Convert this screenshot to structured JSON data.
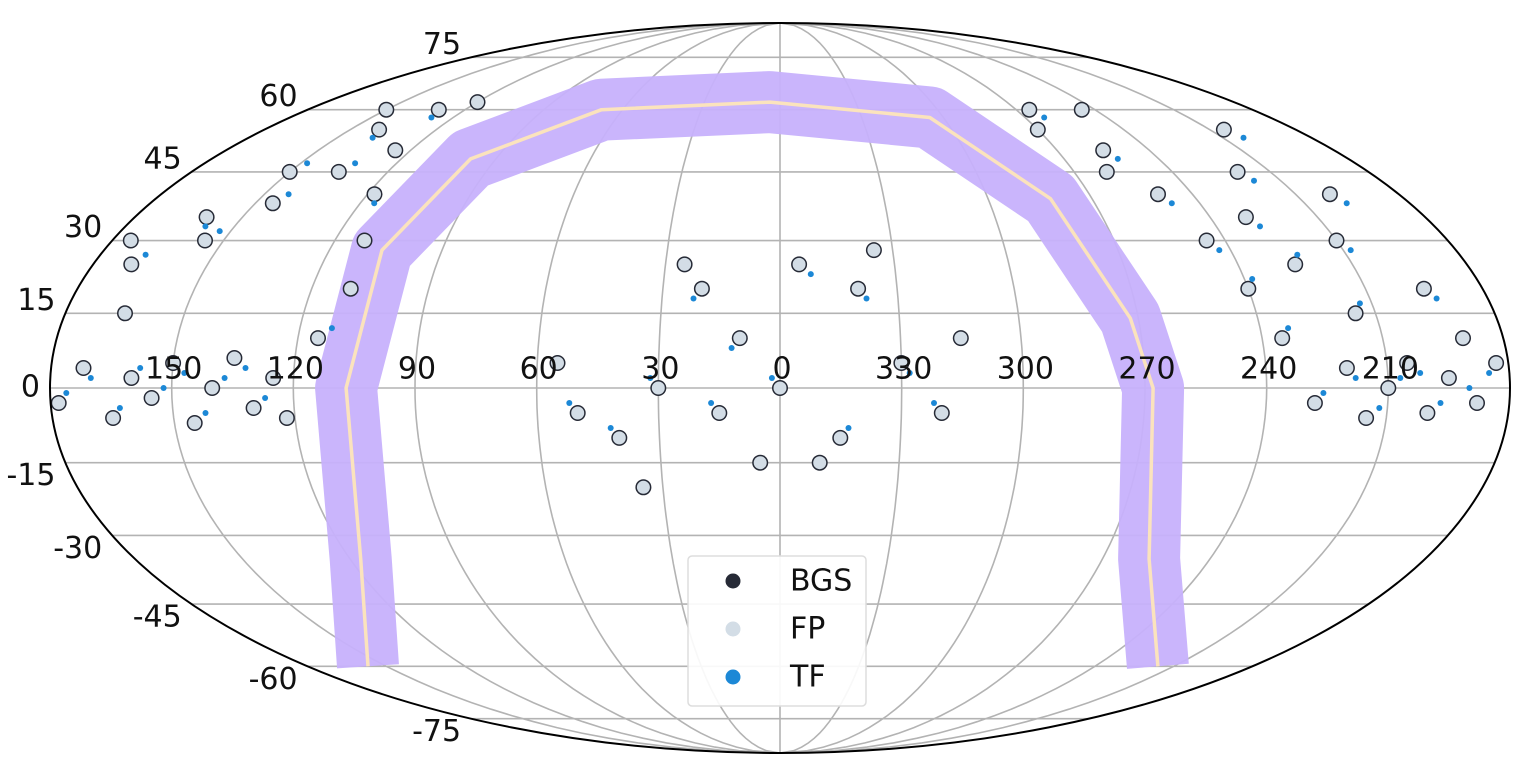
{
  "chart_data": {
    "type": "scatter",
    "projection": "mollweide",
    "xlim": [
      0,
      360
    ],
    "ylim": [
      -90,
      90
    ],
    "xticks": [
      150,
      120,
      90,
      60,
      30,
      0,
      330,
      300,
      270,
      240,
      210
    ],
    "yticks": [
      -75,
      -60,
      -45,
      -30,
      -15,
      0,
      15,
      30,
      45,
      60,
      75
    ],
    "grid": true,
    "legend": "lower center",
    "series": [
      {
        "name": "BGS",
        "color": "#262a36",
        "x": [
          178,
          172,
          165,
          160,
          155,
          150,
          145,
          140,
          135,
          130,
          125,
          122,
          170,
          160,
          150,
          140,
          130,
          120,
          155,
          145,
          135,
          125,
          118,
          112,
          110,
          115,
          165,
          175,
          150,
          0,
          10,
          20,
          355,
          340,
          330,
          320,
          345,
          15,
          30,
          40,
          50,
          55,
          25,
          5,
          350,
          35,
          335,
          315,
          265,
          255,
          250,
          245,
          240,
          235,
          230,
          225,
          220,
          215,
          210,
          205,
          200,
          195,
          190,
          260,
          270,
          245,
          228,
          220,
          215,
          210,
          205,
          200,
          195,
          188,
          183
        ],
        "values": [
          -3,
          4,
          -6,
          2,
          -2,
          5,
          -7,
          0,
          6,
          -4,
          2,
          -6,
          25,
          35,
          45,
          55,
          60,
          62,
          30,
          38,
          45,
          50,
          40,
          30,
          20,
          10,
          15,
          30,
          60,
          0,
          10,
          20,
          25,
          20,
          5,
          -5,
          -10,
          -5,
          0,
          -10,
          -5,
          5,
          25,
          -15,
          -15,
          -20,
          28,
          10,
          60,
          50,
          40,
          30,
          20,
          10,
          35,
          25,
          45,
          15,
          30,
          55,
          40,
          20,
          10,
          45,
          55,
          60,
          -3,
          4,
          -6,
          0,
          5,
          -5,
          2,
          -3,
          5
        ]
      },
      {
        "name": "FP",
        "color": "#d3dde6",
        "x": [
          178,
          172,
          165,
          160,
          155,
          150,
          145,
          140,
          135,
          130,
          125,
          122,
          170,
          160,
          150,
          140,
          130,
          120,
          155,
          145,
          135,
          125,
          118,
          112,
          110,
          115,
          165,
          175,
          150,
          0,
          10,
          20,
          355,
          340,
          330,
          320,
          345,
          15,
          30,
          40,
          50,
          55,
          25,
          5,
          350,
          35,
          335,
          315,
          265,
          255,
          250,
          245,
          240,
          235,
          230,
          225,
          220,
          215,
          210,
          205,
          200,
          195,
          190,
          260,
          270,
          245,
          228,
          220,
          215,
          210,
          205,
          200,
          195,
          188,
          183
        ],
        "values": [
          -3,
          4,
          -6,
          2,
          -2,
          5,
          -7,
          0,
          6,
          -4,
          2,
          -6,
          25,
          35,
          45,
          55,
          60,
          62,
          30,
          38,
          45,
          50,
          40,
          30,
          20,
          10,
          15,
          30,
          60,
          0,
          10,
          20,
          25,
          20,
          5,
          -5,
          -10,
          -5,
          0,
          -10,
          -5,
          5,
          25,
          -15,
          -15,
          -20,
          28,
          10,
          60,
          50,
          40,
          30,
          20,
          10,
          35,
          25,
          45,
          15,
          30,
          55,
          40,
          20,
          10,
          45,
          55,
          60,
          -3,
          4,
          -6,
          0,
          5,
          -5,
          2,
          -3,
          5
        ]
      },
      {
        "name": "TF",
        "color": "#1c88d6",
        "x": [
          176,
          170,
          163,
          158,
          152,
          147,
          142,
          137,
          132,
          127,
          168,
          158,
          148,
          138,
          128,
          153,
          143,
          133,
          116,
          112,
          2,
          12,
          22,
          352,
          338,
          328,
          322,
          343,
          17,
          32,
          42,
          52,
          263,
          253,
          248,
          243,
          238,
          233,
          228,
          223,
          218,
          213,
          208,
          203,
          198,
          193,
          226,
          218,
          212,
          207,
          202,
          197,
          190,
          185
        ],
        "values": [
          -1,
          2,
          -4,
          4,
          0,
          3,
          -5,
          2,
          4,
          -2,
          27,
          33,
          47,
          53,
          58,
          32,
          40,
          47,
          38,
          12,
          2,
          8,
          18,
          23,
          18,
          3,
          -3,
          -8,
          -3,
          2,
          -8,
          -3,
          58,
          48,
          38,
          28,
          22,
          12,
          33,
          27,
          43,
          17,
          28,
          53,
          38,
          18,
          -1,
          2,
          -4,
          2,
          3,
          -3,
          0,
          3
        ]
      }
    ],
    "curve": {
      "band_color": "#c7b1fc",
      "line_color": "#fbe3bd",
      "x": [
        157,
        117,
        107,
        106,
        98,
        68,
        4,
        305,
        282,
        272,
        268,
        257,
        216
      ],
      "values": [
        -60,
        -35,
        0,
        28,
        48,
        60,
        62,
        58,
        39,
        14,
        0,
        -35,
        -60
      ]
    }
  }
}
